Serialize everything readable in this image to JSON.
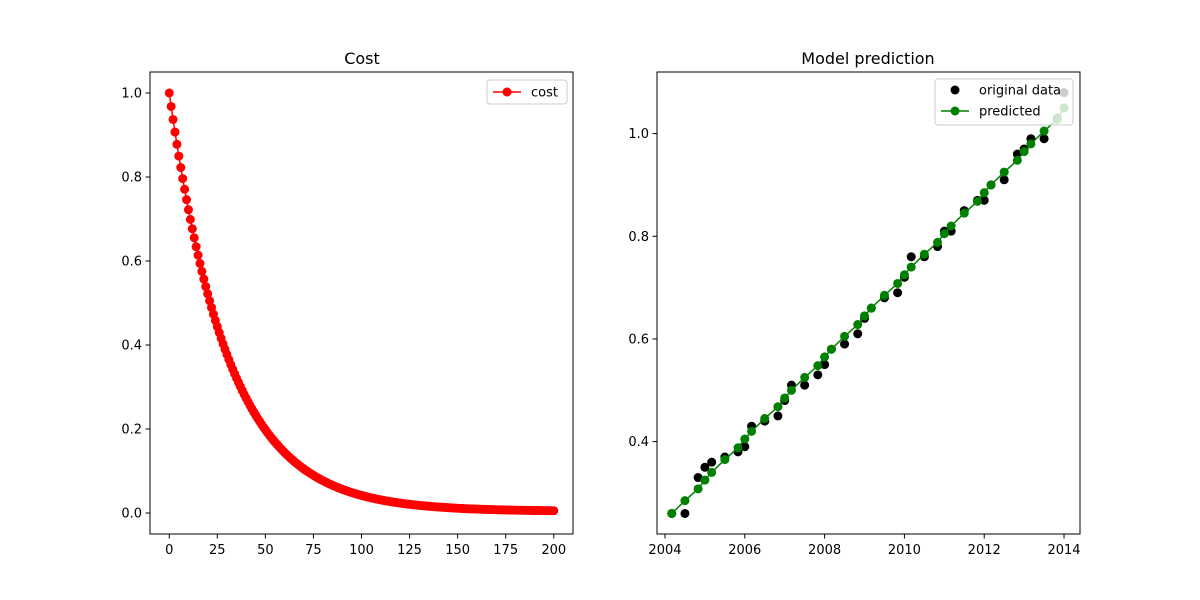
{
  "chart_data": [
    {
      "type": "line",
      "title": "Cost",
      "xlabel": "",
      "ylabel": "",
      "xlim": [
        -10,
        210
      ],
      "ylim": [
        -0.05,
        1.05
      ],
      "x_ticks": [
        0,
        25,
        50,
        75,
        100,
        125,
        150,
        175,
        200
      ],
      "x_tick_labels": [
        "0",
        "25",
        "50",
        "75",
        "100",
        "125",
        "150",
        "175",
        "200"
      ],
      "y_ticks": [
        0.0,
        0.2,
        0.4,
        0.6,
        0.8,
        1.0
      ],
      "y_tick_labels": [
        "0.0",
        "0.2",
        "0.4",
        "0.6",
        "0.8",
        "1.0"
      ],
      "grid": false,
      "legend_position": "top-right",
      "color": "#ff0000",
      "series": [
        {
          "name": "cost",
          "x_start": 0,
          "x_end": 200,
          "step": 1,
          "initial": 1.0,
          "floor": 0.004,
          "decay_per_step": 0.0327,
          "x": [
            0,
            10,
            20,
            30,
            40,
            50,
            60,
            70,
            80,
            90,
            100,
            110,
            120,
            130,
            140,
            150,
            160,
            170,
            180,
            190,
            200
          ],
          "values": [
            1.0,
            0.72,
            0.52,
            0.375,
            0.27,
            0.195,
            0.142,
            0.103,
            0.076,
            0.056,
            0.042,
            0.032,
            0.024,
            0.018,
            0.014,
            0.011,
            0.009,
            0.007,
            0.006,
            0.005,
            0.004
          ]
        }
      ]
    },
    {
      "type": "scatter",
      "title": "Model prediction",
      "xlabel": "",
      "ylabel": "",
      "xlim": [
        2003.8,
        2014.4
      ],
      "ylim": [
        0.22,
        1.12
      ],
      "x_ticks": [
        2004,
        2006,
        2008,
        2010,
        2012,
        2014
      ],
      "x_tick_labels": [
        "2004",
        "2006",
        "2008",
        "2010",
        "2012",
        "2014"
      ],
      "y_ticks": [
        0.4,
        0.6,
        0.8,
        1.0
      ],
      "y_tick_labels": [
        "0.4",
        "0.6",
        "0.8",
        "1.0"
      ],
      "grid": false,
      "legend_position": "top-right",
      "series": [
        {
          "name": "original data",
          "kind": "scatter",
          "color": "#000000",
          "x": [
            2004.17,
            2004.5,
            2004.83,
            2005.0,
            2005.17,
            2005.5,
            2005.83,
            2006.0,
            2006.17,
            2006.5,
            2006.83,
            2007.0,
            2007.17,
            2007.5,
            2007.83,
            2008.0,
            2008.17,
            2008.5,
            2008.83,
            2009.0,
            2009.17,
            2009.5,
            2009.83,
            2010.0,
            2010.17,
            2010.5,
            2010.83,
            2011.0,
            2011.17,
            2011.5,
            2011.83,
            2012.0,
            2012.17,
            2012.5,
            2012.83,
            2013.0,
            2013.17,
            2013.5,
            2013.83,
            2014.0
          ],
          "values": [
            0.26,
            0.26,
            0.33,
            0.35,
            0.36,
            0.37,
            0.38,
            0.39,
            0.43,
            0.44,
            0.45,
            0.48,
            0.51,
            0.51,
            0.53,
            0.55,
            0.58,
            0.59,
            0.61,
            0.64,
            0.66,
            0.68,
            0.69,
            0.72,
            0.76,
            0.76,
            0.78,
            0.81,
            0.81,
            0.85,
            0.87,
            0.87,
            0.9,
            0.91,
            0.96,
            0.97,
            0.99,
            0.99,
            1.03,
            1.08
          ]
        },
        {
          "name": "predicted",
          "kind": "line",
          "color": "#008000",
          "x": [
            2004.17,
            2004.5,
            2004.83,
            2005.0,
            2005.17,
            2005.5,
            2005.83,
            2006.0,
            2006.17,
            2006.5,
            2006.83,
            2007.0,
            2007.17,
            2007.5,
            2007.83,
            2008.0,
            2008.17,
            2008.5,
            2008.83,
            2009.0,
            2009.17,
            2009.5,
            2009.83,
            2010.0,
            2010.17,
            2010.5,
            2010.83,
            2011.0,
            2011.17,
            2011.5,
            2011.83,
            2012.0,
            2012.17,
            2012.5,
            2012.83,
            2013.0,
            2013.17,
            2013.5,
            2013.83,
            2014.0
          ],
          "values": [
            0.26,
            0.285,
            0.308,
            0.325,
            0.34,
            0.365,
            0.388,
            0.405,
            0.42,
            0.445,
            0.468,
            0.485,
            0.5,
            0.525,
            0.548,
            0.565,
            0.58,
            0.605,
            0.628,
            0.645,
            0.66,
            0.685,
            0.708,
            0.725,
            0.74,
            0.765,
            0.788,
            0.805,
            0.82,
            0.845,
            0.868,
            0.885,
            0.9,
            0.925,
            0.948,
            0.965,
            0.98,
            1.005,
            1.028,
            1.05
          ]
        }
      ]
    }
  ]
}
